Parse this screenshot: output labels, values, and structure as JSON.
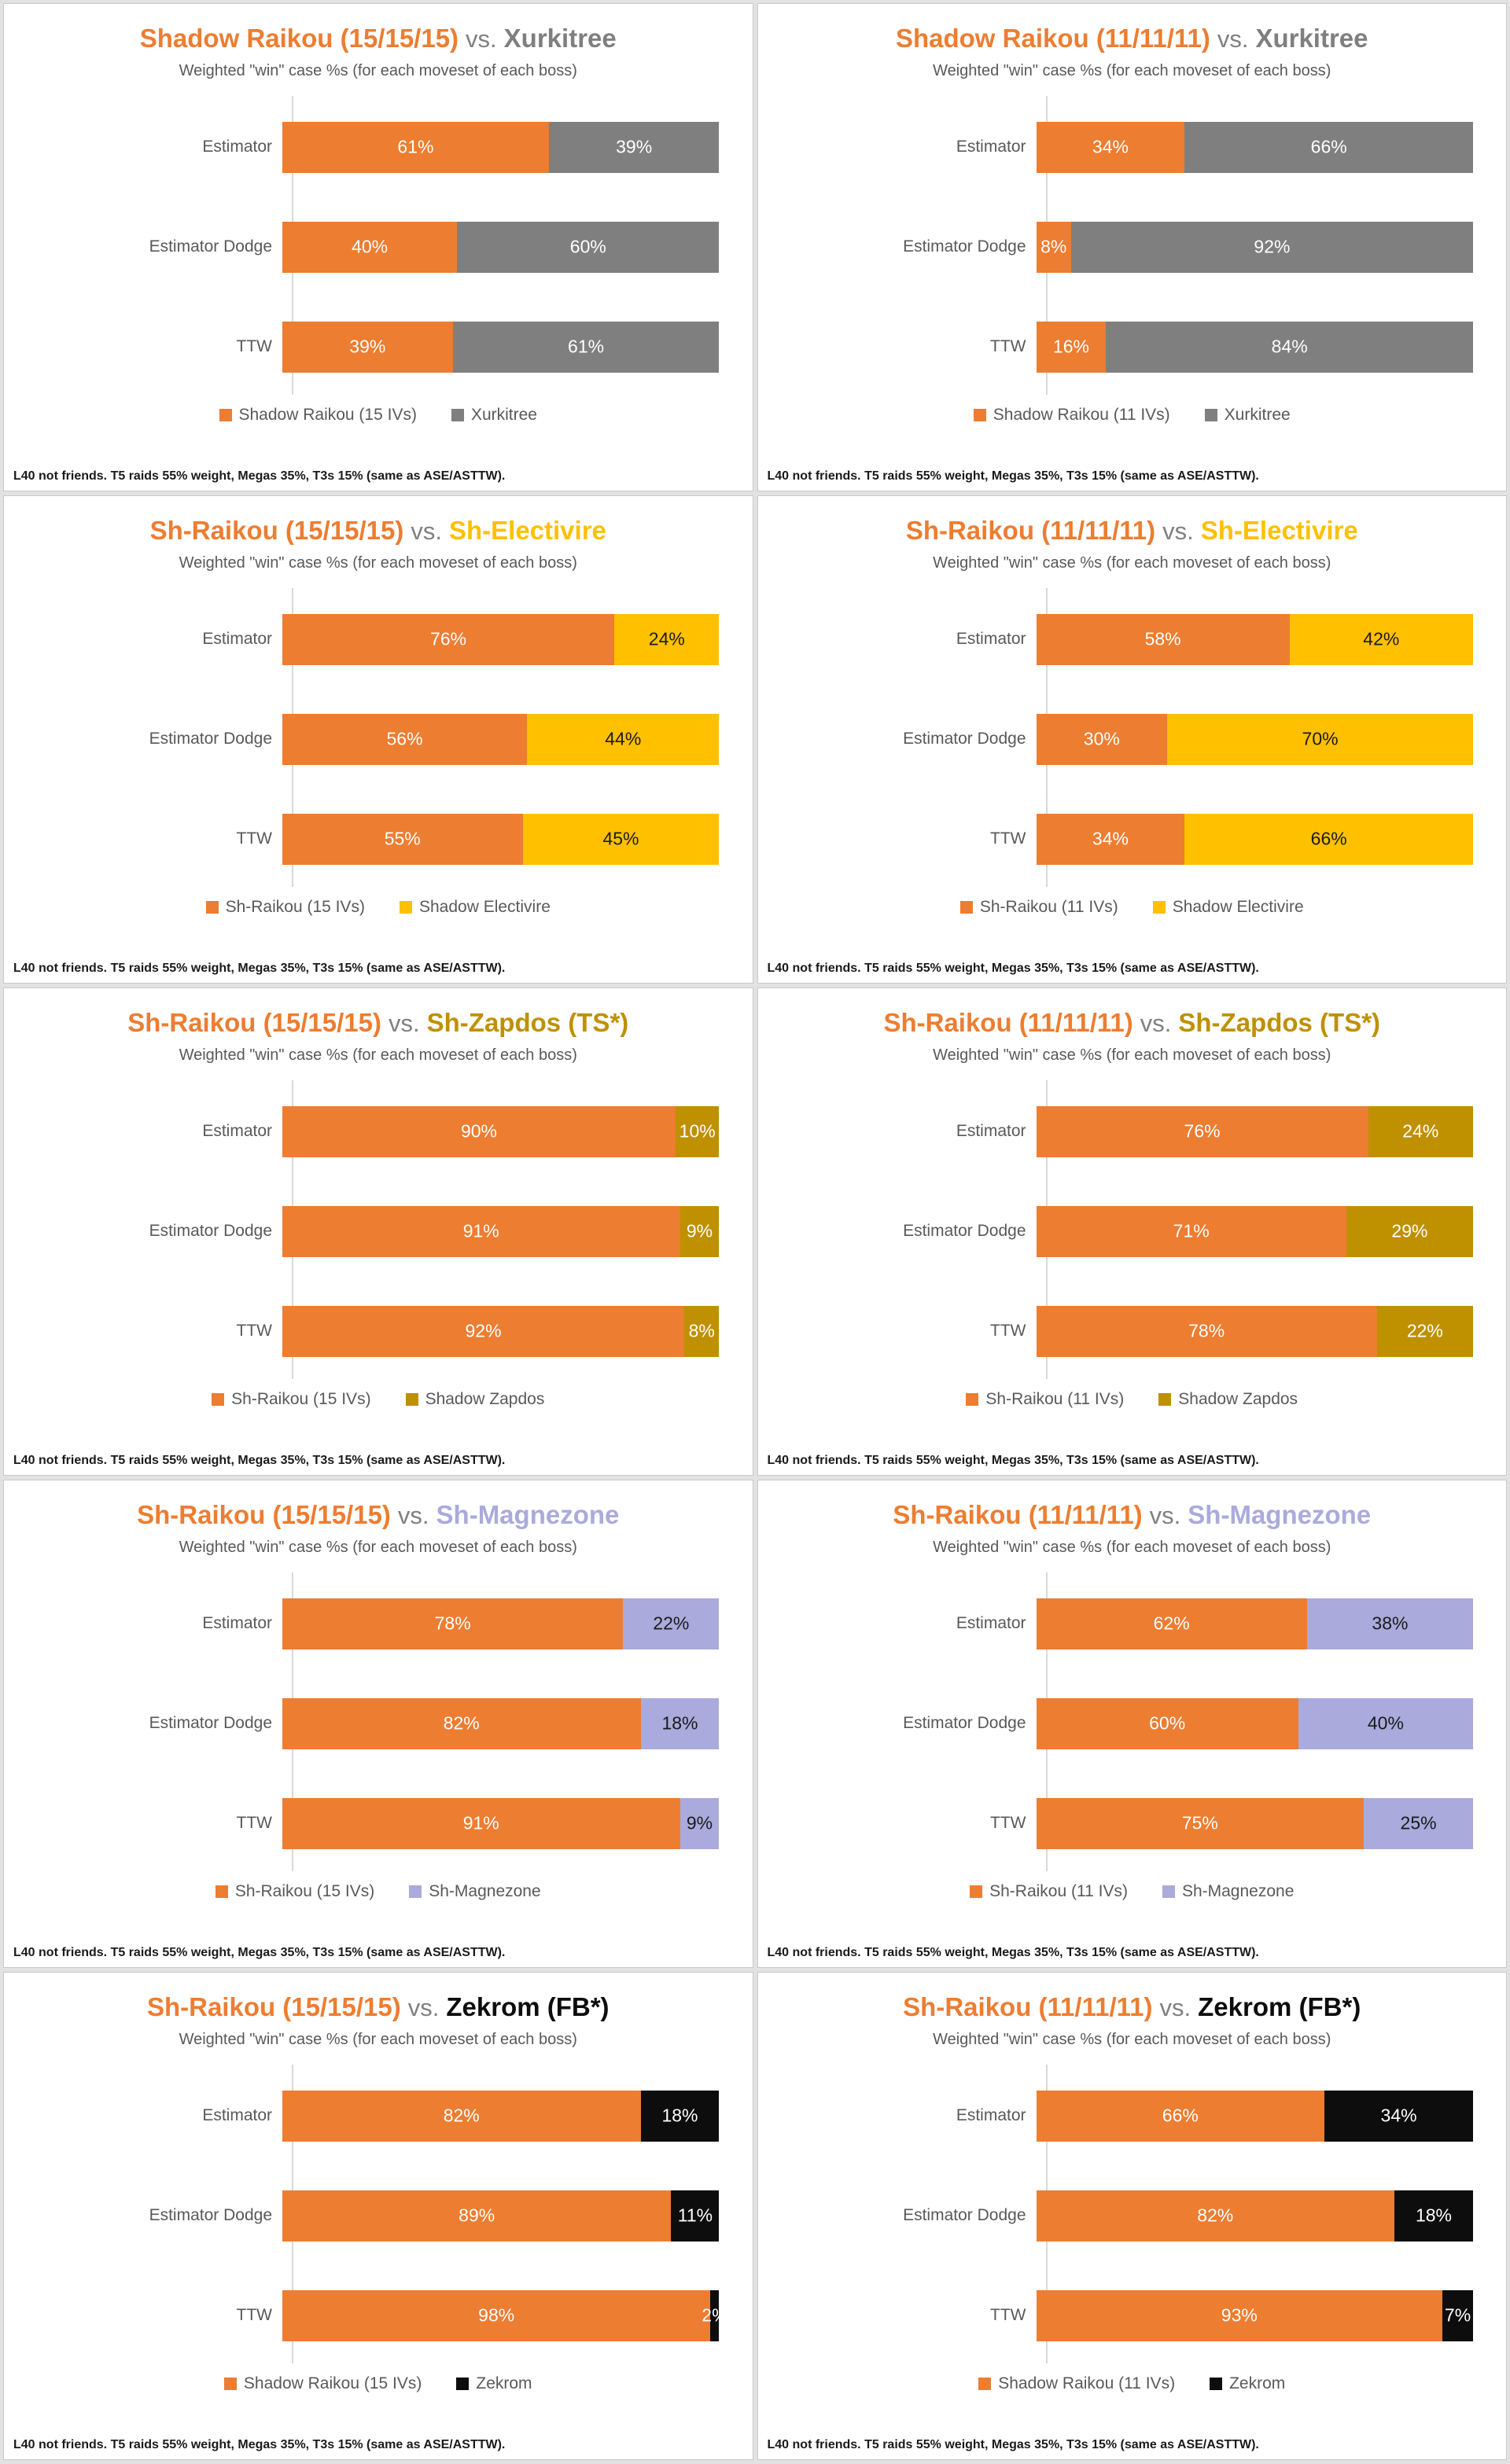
{
  "page": {
    "vs_text": "vs.",
    "subtitle": "Weighted \"win\" case %s (for each moveset of each boss)",
    "footnote": "L40 not friends. T5 raids 55% weight, Megas 35%, T3s 15% (same as ASE/ASTTW).",
    "categories": [
      "Estimator",
      "Estimator Dodge",
      "TTW"
    ]
  },
  "chart_data": [
    {
      "type": "bar",
      "stacked": true,
      "orientation": "horizontal",
      "xlim": [
        0,
        100
      ],
      "title_left": "Shadow Raikou (15/15/15)",
      "title_left_color": "#ED7D31",
      "title_right": "Xurkitree",
      "title_right_color": "#7F7F7F",
      "categories": [
        "Estimator",
        "Estimator Dodge",
        "TTW"
      ],
      "series": [
        {
          "name": "Shadow Raikou (15 IVs)",
          "color": "#ED7D31",
          "label_color": "#FFFFFF",
          "values": [
            61,
            40,
            39
          ],
          "labels": [
            "61%",
            "40%",
            "39%"
          ]
        },
        {
          "name": "Xurkitree",
          "color": "#7F7F7F",
          "label_color": "#FFFFFF",
          "values": [
            39,
            60,
            61
          ],
          "labels": [
            "39%",
            "60%",
            "61%"
          ]
        }
      ]
    },
    {
      "type": "bar",
      "stacked": true,
      "orientation": "horizontal",
      "xlim": [
        0,
        100
      ],
      "title_left": "Shadow Raikou (11/11/11)",
      "title_left_color": "#ED7D31",
      "title_right": "Xurkitree",
      "title_right_color": "#7F7F7F",
      "categories": [
        "Estimator",
        "Estimator Dodge",
        "TTW"
      ],
      "series": [
        {
          "name": "Shadow Raikou (11 IVs)",
          "color": "#ED7D31",
          "label_color": "#FFFFFF",
          "values": [
            34,
            8,
            16
          ],
          "labels": [
            "34%",
            "8%",
            "16%"
          ]
        },
        {
          "name": "Xurkitree",
          "color": "#7F7F7F",
          "label_color": "#FFFFFF",
          "values": [
            66,
            92,
            84
          ],
          "labels": [
            "66%",
            "92%",
            "84%"
          ]
        }
      ]
    },
    {
      "type": "bar",
      "stacked": true,
      "orientation": "horizontal",
      "xlim": [
        0,
        100
      ],
      "title_left": "Sh-Raikou (15/15/15)",
      "title_left_color": "#ED7D31",
      "title_right": "Sh-Electivire",
      "title_right_color": "#FFC000",
      "categories": [
        "Estimator",
        "Estimator Dodge",
        "TTW"
      ],
      "series": [
        {
          "name": "Sh-Raikou (15 IVs)",
          "color": "#ED7D31",
          "label_color": "#FFFFFF",
          "values": [
            76,
            56,
            55
          ],
          "labels": [
            "76%",
            "56%",
            "55%"
          ]
        },
        {
          "name": "Shadow Electivire",
          "color": "#FFC000",
          "label_color": "#1A1A1A",
          "values": [
            24,
            44,
            45
          ],
          "labels": [
            "24%",
            "44%",
            "45%"
          ]
        }
      ]
    },
    {
      "type": "bar",
      "stacked": true,
      "orientation": "horizontal",
      "xlim": [
        0,
        100
      ],
      "title_left": "Sh-Raikou (11/11/11)",
      "title_left_color": "#ED7D31",
      "title_right": "Sh-Electivire",
      "title_right_color": "#FFC000",
      "categories": [
        "Estimator",
        "Estimator Dodge",
        "TTW"
      ],
      "series": [
        {
          "name": "Sh-Raikou (11 IVs)",
          "color": "#ED7D31",
          "label_color": "#FFFFFF",
          "values": [
            58,
            30,
            34
          ],
          "labels": [
            "58%",
            "30%",
            "34%"
          ]
        },
        {
          "name": "Shadow Electivire",
          "color": "#FFC000",
          "label_color": "#1A1A1A",
          "values": [
            42,
            70,
            66
          ],
          "labels": [
            "42%",
            "70%",
            "66%"
          ]
        }
      ]
    },
    {
      "type": "bar",
      "stacked": true,
      "orientation": "horizontal",
      "xlim": [
        0,
        100
      ],
      "title_left": "Sh-Raikou (15/15/15)",
      "title_left_color": "#ED7D31",
      "title_right": "Sh-Zapdos (TS*)",
      "title_right_color": "#BF9000",
      "categories": [
        "Estimator",
        "Estimator Dodge",
        "TTW"
      ],
      "series": [
        {
          "name": "Sh-Raikou (15 IVs)",
          "color": "#ED7D31",
          "label_color": "#FFFFFF",
          "values": [
            90,
            91,
            92
          ],
          "labels": [
            "90%",
            "91%",
            "92%"
          ]
        },
        {
          "name": "Shadow Zapdos",
          "color": "#BF9000",
          "label_color": "#FFFFFF",
          "values": [
            10,
            9,
            8
          ],
          "labels": [
            "10%",
            "9%",
            "8%"
          ]
        }
      ]
    },
    {
      "type": "bar",
      "stacked": true,
      "orientation": "horizontal",
      "xlim": [
        0,
        100
      ],
      "title_left": "Sh-Raikou (11/11/11)",
      "title_left_color": "#ED7D31",
      "title_right": "Sh-Zapdos (TS*)",
      "title_right_color": "#BF9000",
      "categories": [
        "Estimator",
        "Estimator Dodge",
        "TTW"
      ],
      "series": [
        {
          "name": "Sh-Raikou (11 IVs)",
          "color": "#ED7D31",
          "label_color": "#FFFFFF",
          "values": [
            76,
            71,
            78
          ],
          "labels": [
            "76%",
            "71%",
            "78%"
          ]
        },
        {
          "name": "Shadow Zapdos",
          "color": "#BF9000",
          "label_color": "#FFFFFF",
          "values": [
            24,
            29,
            22
          ],
          "labels": [
            "24%",
            "29%",
            "22%"
          ]
        }
      ]
    },
    {
      "type": "bar",
      "stacked": true,
      "orientation": "horizontal",
      "xlim": [
        0,
        100
      ],
      "title_left": "Sh-Raikou (15/15/15)",
      "title_left_color": "#ED7D31",
      "title_right": "Sh-Magnezone",
      "title_right_color": "#AAAADC",
      "categories": [
        "Estimator",
        "Estimator Dodge",
        "TTW"
      ],
      "series": [
        {
          "name": "Sh-Raikou (15 IVs)",
          "color": "#ED7D31",
          "label_color": "#FFFFFF",
          "values": [
            78,
            82,
            91
          ],
          "labels": [
            "78%",
            "82%",
            "91%"
          ]
        },
        {
          "name": "Sh-Magnezone",
          "color": "#AAAADC",
          "label_color": "#1A1A1A",
          "values": [
            22,
            18,
            9
          ],
          "labels": [
            "22%",
            "18%",
            "9%"
          ]
        }
      ]
    },
    {
      "type": "bar",
      "stacked": true,
      "orientation": "horizontal",
      "xlim": [
        0,
        100
      ],
      "title_left": "Sh-Raikou (11/11/11)",
      "title_left_color": "#ED7D31",
      "title_right": "Sh-Magnezone",
      "title_right_color": "#AAAADC",
      "categories": [
        "Estimator",
        "Estimator Dodge",
        "TTW"
      ],
      "series": [
        {
          "name": "Sh-Raikou (11 IVs)",
          "color": "#ED7D31",
          "label_color": "#FFFFFF",
          "values": [
            62,
            60,
            75
          ],
          "labels": [
            "62%",
            "60%",
            "75%"
          ]
        },
        {
          "name": "Sh-Magnezone",
          "color": "#AAAADC",
          "label_color": "#1A1A1A",
          "values": [
            38,
            40,
            25
          ],
          "labels": [
            "38%",
            "40%",
            "25%"
          ]
        }
      ]
    },
    {
      "type": "bar",
      "stacked": true,
      "orientation": "horizontal",
      "xlim": [
        0,
        100
      ],
      "title_left": "Sh-Raikou (15/15/15)",
      "title_left_color": "#ED7D31",
      "title_right": "Zekrom (FB*)",
      "title_right_color": "#0D0D0D",
      "categories": [
        "Estimator",
        "Estimator Dodge",
        "TTW"
      ],
      "series": [
        {
          "name": "Shadow Raikou (15 IVs)",
          "color": "#ED7D31",
          "label_color": "#FFFFFF",
          "values": [
            82,
            89,
            98
          ],
          "labels": [
            "82%",
            "89%",
            "98%"
          ]
        },
        {
          "name": "Zekrom",
          "color": "#0D0D0D",
          "label_color": "#FFFFFF",
          "values": [
            18,
            11,
            2
          ],
          "labels": [
            "18%",
            "11%",
            "2%"
          ]
        }
      ]
    },
    {
      "type": "bar",
      "stacked": true,
      "orientation": "horizontal",
      "xlim": [
        0,
        100
      ],
      "title_left": "Sh-Raikou (11/11/11)",
      "title_left_color": "#ED7D31",
      "title_right": "Zekrom (FB*)",
      "title_right_color": "#0D0D0D",
      "categories": [
        "Estimator",
        "Estimator Dodge",
        "TTW"
      ],
      "series": [
        {
          "name": "Shadow Raikou (11 IVs)",
          "color": "#ED7D31",
          "label_color": "#FFFFFF",
          "values": [
            66,
            82,
            93
          ],
          "labels": [
            "66%",
            "82%",
            "93%"
          ]
        },
        {
          "name": "Zekrom",
          "color": "#0D0D0D",
          "label_color": "#FFFFFF",
          "values": [
            34,
            18,
            7
          ],
          "labels": [
            "34%",
            "18%",
            "7%"
          ]
        }
      ]
    }
  ]
}
